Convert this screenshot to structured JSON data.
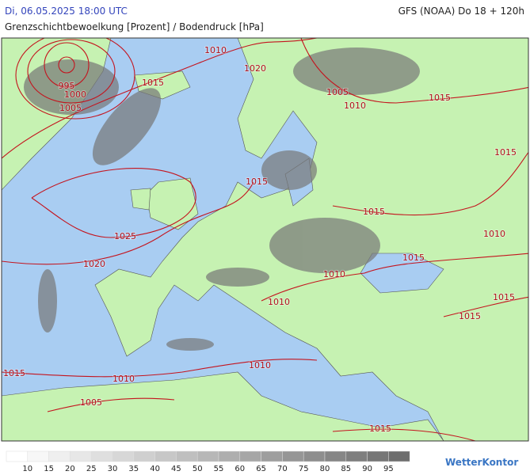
{
  "header": {
    "timestamp": "Di, 06.05.2025 18:00 UTC",
    "model": "GFS (NOAA) Do 18 + 120h",
    "title": "Grenzschichtbewoelkung [Prozent] / Bodendruck [hPa]"
  },
  "map": {
    "isobar_labels": [
      1010,
      1020,
      995,
      1015,
      1000,
      1005,
      1005,
      1010,
      1015,
      1015,
      1015,
      1015,
      1010,
      1025,
      1020,
      1015,
      1010,
      1010,
      1015,
      1015,
      1010,
      1015,
      1010,
      1005,
      1015
    ]
  },
  "colorbar": {
    "labels": [
      10,
      15,
      20,
      25,
      30,
      35,
      40,
      45,
      50,
      55,
      60,
      65,
      70,
      75,
      80,
      85,
      90,
      95
    ]
  },
  "footer": {
    "brand": "WetterKontor"
  }
}
